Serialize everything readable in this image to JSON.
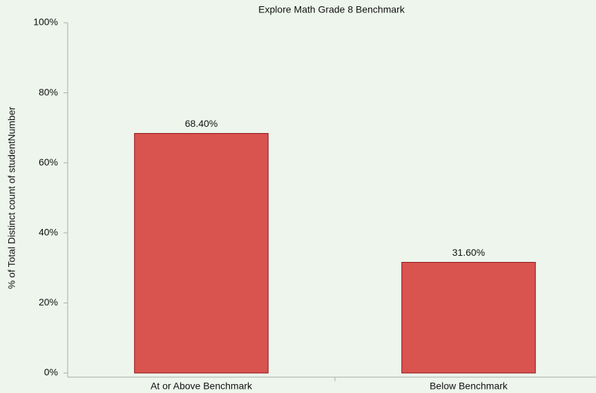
{
  "chart_data": {
    "type": "bar",
    "title": "Explore Math Grade 8 Benchmark",
    "y_label": "% of Total Distinct count of studentNumber",
    "categories": [
      "At or Above Benchmark",
      "Below Benchmark"
    ],
    "values": [
      68.4,
      31.6
    ],
    "value_labels": [
      "68.40%",
      "31.60%"
    ],
    "color": "#d9534f",
    "ylim": [
      0,
      100
    ],
    "yticks": [
      {
        "value": 0,
        "label": "0%"
      },
      {
        "value": 20,
        "label": "20%"
      },
      {
        "value": 40,
        "label": "40%"
      },
      {
        "value": 60,
        "label": "60%"
      },
      {
        "value": 80,
        "label": "80%"
      },
      {
        "value": 100,
        "label": "100%"
      }
    ],
    "grid": false
  }
}
